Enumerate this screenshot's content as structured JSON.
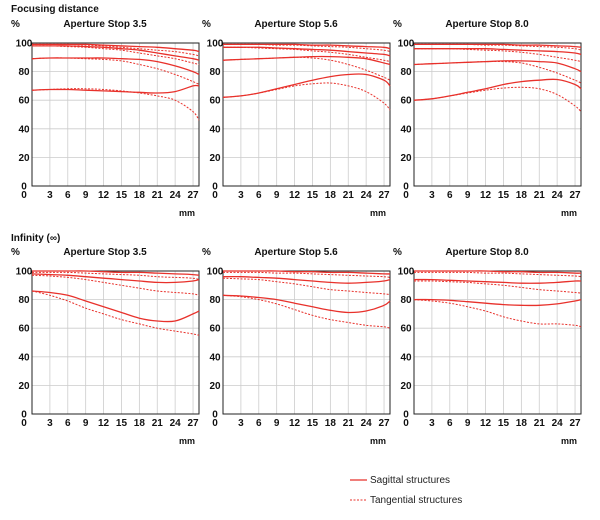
{
  "sections": [
    {
      "title": "Focusing distance"
    },
    {
      "title": "Infinity (∞)"
    }
  ],
  "legend": {
    "sagittal_label": "Sagittal structures",
    "tangential_label": "Tangential structures"
  },
  "colors": {
    "curve": "#e8312b",
    "axis": "#222222",
    "grid": "#cccccc"
  },
  "chart_data": [
    {
      "type": "line",
      "title": "Aperture Stop 3.5",
      "ylabel": "%",
      "xlabel": "mm",
      "x_ticks": [
        0,
        3,
        6,
        9,
        12,
        15,
        18,
        21,
        24,
        27
      ],
      "y_ticks": [
        0,
        20,
        40,
        60,
        80,
        100
      ],
      "xlim": [
        0,
        28
      ],
      "ylim": [
        0,
        100
      ],
      "grid": true,
      "x": [
        0,
        3,
        6,
        9,
        12,
        15,
        18,
        21,
        24,
        27,
        28
      ],
      "series": [
        {
          "style": "solid",
          "values": [
            99,
            99,
            99,
            99,
            98.5,
            98,
            97.5,
            97,
            96,
            95,
            94
          ]
        },
        {
          "style": "dashed",
          "values": [
            99,
            99,
            99,
            98.5,
            98,
            97,
            96,
            95,
            94,
            92,
            91
          ]
        },
        {
          "style": "solid",
          "values": [
            98,
            98,
            98,
            97.5,
            97,
            96,
            95,
            93,
            91,
            89,
            88
          ]
        },
        {
          "style": "dashed",
          "values": [
            98,
            98,
            97.5,
            97,
            96,
            95,
            93,
            91,
            89,
            86,
            85
          ]
        },
        {
          "style": "solid",
          "values": [
            89,
            89.5,
            89.5,
            89.5,
            89.5,
            89,
            88.5,
            87,
            84,
            80,
            78
          ]
        },
        {
          "style": "dashed",
          "values": [
            89,
            89.5,
            89.5,
            89,
            88.5,
            87.5,
            85,
            82,
            78,
            73,
            71
          ]
        },
        {
          "style": "solid",
          "values": [
            67,
            67.5,
            67.5,
            67,
            66.5,
            66,
            65.5,
            65,
            66,
            70,
            70
          ]
        },
        {
          "style": "dashed",
          "values": [
            67,
            67.5,
            68,
            68,
            67.5,
            66.5,
            65,
            63,
            60,
            52,
            46
          ]
        }
      ]
    },
    {
      "type": "line",
      "title": "Aperture Stop 5.6",
      "ylabel": "%",
      "xlabel": "mm",
      "x_ticks": [
        0,
        3,
        6,
        9,
        12,
        15,
        18,
        21,
        24,
        27
      ],
      "y_ticks": [
        0,
        20,
        40,
        60,
        80,
        100
      ],
      "xlim": [
        0,
        28
      ],
      "ylim": [
        0,
        100
      ],
      "grid": true,
      "x": [
        0,
        3,
        6,
        9,
        12,
        15,
        18,
        21,
        24,
        27,
        28
      ],
      "series": [
        {
          "style": "solid",
          "values": [
            99,
            99,
            99,
            99,
            99,
            98.5,
            98.5,
            98,
            97.5,
            97,
            96
          ]
        },
        {
          "style": "dashed",
          "values": [
            99,
            99,
            99,
            98.5,
            98.5,
            98,
            97.5,
            97,
            96,
            95,
            94
          ]
        },
        {
          "style": "solid",
          "values": [
            97,
            97,
            97,
            96.5,
            96,
            95.5,
            95,
            94,
            93,
            92,
            91
          ]
        },
        {
          "style": "dashed",
          "values": [
            97,
            97,
            96.5,
            96,
            95.5,
            94.5,
            93.5,
            92,
            90,
            88,
            87
          ]
        },
        {
          "style": "solid",
          "values": [
            88,
            88.5,
            89,
            89.5,
            90,
            90.5,
            90.5,
            90,
            89,
            86,
            85
          ]
        },
        {
          "style": "dashed",
          "values": [
            88,
            88.5,
            89,
            89.5,
            90,
            89.5,
            88,
            85,
            81,
            76,
            74
          ]
        },
        {
          "style": "solid",
          "values": [
            62,
            63,
            65,
            68,
            71,
            74,
            76.5,
            78,
            78,
            74,
            70
          ]
        },
        {
          "style": "dashed",
          "values": [
            62,
            63,
            65,
            67.5,
            70,
            71.5,
            72,
            70,
            66,
            58,
            53
          ]
        }
      ]
    },
    {
      "type": "line",
      "title": "Aperture Stop 8.0",
      "ylabel": "%",
      "xlabel": "mm",
      "x_ticks": [
        0,
        3,
        6,
        9,
        12,
        15,
        18,
        21,
        24,
        27
      ],
      "y_ticks": [
        0,
        20,
        40,
        60,
        80,
        100
      ],
      "xlim": [
        0,
        28
      ],
      "ylim": [
        0,
        100
      ],
      "grid": true,
      "x": [
        0,
        3,
        6,
        9,
        12,
        15,
        18,
        21,
        24,
        27,
        28
      ],
      "series": [
        {
          "style": "solid",
          "values": [
            99,
            99,
            99,
            99,
            99,
            99,
            98.5,
            98.5,
            98,
            97.5,
            97
          ]
        },
        {
          "style": "dashed",
          "values": [
            99,
            99,
            99,
            99,
            98.5,
            98.5,
            98,
            97.5,
            97,
            96,
            95
          ]
        },
        {
          "style": "solid",
          "values": [
            96,
            96,
            96,
            96,
            96,
            95.5,
            95,
            94.5,
            94,
            93,
            92
          ]
        },
        {
          "style": "dashed",
          "values": [
            96,
            96,
            96,
            95.5,
            95,
            94.5,
            93.5,
            92,
            90,
            88,
            87
          ]
        },
        {
          "style": "solid",
          "values": [
            85,
            85.5,
            86,
            86.5,
            87,
            87.5,
            87.5,
            87,
            86,
            82,
            80
          ]
        },
        {
          "style": "dashed",
          "values": [
            85,
            85.5,
            86,
            86.5,
            87,
            87,
            86,
            83,
            79,
            74,
            72
          ]
        },
        {
          "style": "solid",
          "values": [
            60,
            61,
            63,
            65.5,
            68,
            71,
            73,
            74,
            74.5,
            71,
            68
          ]
        },
        {
          "style": "dashed",
          "values": [
            60,
            61,
            63,
            65,
            67,
            68.5,
            69,
            68,
            64,
            56,
            52
          ]
        }
      ]
    },
    {
      "type": "line",
      "title": "Aperture Stop 3.5",
      "ylabel": "%",
      "xlabel": "mm",
      "x_ticks": [
        0,
        3,
        6,
        9,
        12,
        15,
        18,
        21,
        24,
        27
      ],
      "y_ticks": [
        0,
        20,
        40,
        60,
        80,
        100
      ],
      "xlim": [
        0,
        28
      ],
      "ylim": [
        0,
        100
      ],
      "grid": true,
      "x": [
        0,
        3,
        6,
        9,
        12,
        15,
        18,
        21,
        24,
        27,
        28
      ],
      "series": [
        {
          "style": "solid",
          "values": [
            100,
            100,
            100,
            100,
            99.5,
            99,
            99,
            98.5,
            98,
            97.5,
            97
          ]
        },
        {
          "style": "dashed",
          "values": [
            99,
            99,
            99,
            98.5,
            98,
            97.5,
            97,
            96,
            95.5,
            95,
            94
          ]
        },
        {
          "style": "solid",
          "values": [
            98,
            97.5,
            97,
            96,
            95,
            94,
            93,
            92,
            92,
            93,
            94
          ]
        },
        {
          "style": "dashed",
          "values": [
            97,
            96.5,
            95.5,
            94,
            92,
            90,
            88,
            86,
            85,
            84,
            83
          ]
        },
        {
          "style": "solid",
          "values": [
            86,
            85,
            83,
            79,
            75,
            71,
            67,
            65,
            65,
            70,
            72
          ]
        },
        {
          "style": "dashed",
          "values": [
            86,
            83,
            79,
            74,
            70,
            66,
            63,
            60,
            58,
            56,
            55
          ]
        }
      ]
    },
    {
      "type": "line",
      "title": "Aperture Stop 5.6",
      "ylabel": "%",
      "xlabel": "mm",
      "x_ticks": [
        0,
        3,
        6,
        9,
        12,
        15,
        18,
        21,
        24,
        27
      ],
      "y_ticks": [
        0,
        20,
        40,
        60,
        80,
        100
      ],
      "xlim": [
        0,
        28
      ],
      "ylim": [
        0,
        100
      ],
      "grid": true,
      "x": [
        0,
        3,
        6,
        9,
        12,
        15,
        18,
        21,
        24,
        27,
        28
      ],
      "series": [
        {
          "style": "solid",
          "values": [
            100,
            100,
            100,
            100,
            99.5,
            99.5,
            99,
            99,
            98.5,
            98,
            98
          ]
        },
        {
          "style": "dashed",
          "values": [
            99,
            99,
            99,
            98.5,
            98.5,
            98,
            97.5,
            97,
            96.5,
            96,
            95.5
          ]
        },
        {
          "style": "solid",
          "values": [
            96,
            96,
            95.5,
            95,
            94,
            93,
            92,
            91.5,
            92,
            93,
            94
          ]
        },
        {
          "style": "dashed",
          "values": [
            95,
            94.5,
            94,
            92.5,
            91,
            89,
            87,
            86,
            85,
            84,
            83.5
          ]
        },
        {
          "style": "solid",
          "values": [
            83,
            82.5,
            81.5,
            80,
            77.5,
            75,
            72.5,
            71,
            72,
            76,
            79
          ]
        },
        {
          "style": "dashed",
          "values": [
            83,
            82,
            80,
            77,
            73,
            69,
            66,
            64,
            62,
            61,
            60
          ]
        }
      ]
    },
    {
      "type": "line",
      "title": "Aperture Stop 8.0",
      "ylabel": "%",
      "xlabel": "mm",
      "x_ticks": [
        0,
        3,
        6,
        9,
        12,
        15,
        18,
        21,
        24,
        27
      ],
      "y_ticks": [
        0,
        20,
        40,
        60,
        80,
        100
      ],
      "xlim": [
        0,
        28
      ],
      "ylim": [
        0,
        100
      ],
      "grid": true,
      "x": [
        0,
        3,
        6,
        9,
        12,
        15,
        18,
        21,
        24,
        27,
        28
      ],
      "series": [
        {
          "style": "solid",
          "values": [
            100,
            100,
            100,
            100,
            100,
            99.5,
            99.5,
            99,
            99,
            98.5,
            98.5
          ]
        },
        {
          "style": "dashed",
          "values": [
            99,
            99,
            99,
            99,
            98.5,
            98.5,
            98,
            97.5,
            97,
            96.5,
            96
          ]
        },
        {
          "style": "solid",
          "values": [
            94,
            94,
            93.5,
            93,
            92.5,
            92,
            91.5,
            91.5,
            92,
            93,
            93
          ]
        },
        {
          "style": "dashed",
          "values": [
            93,
            93,
            92.5,
            92,
            91,
            90,
            88.5,
            87,
            86,
            85,
            84.5
          ]
        },
        {
          "style": "solid",
          "values": [
            80,
            80,
            79.5,
            78.5,
            77.5,
            76.5,
            76,
            76,
            77,
            79,
            80
          ]
        },
        {
          "style": "dashed",
          "values": [
            80,
            79,
            77.5,
            75,
            72,
            68,
            65,
            63,
            63,
            62,
            61
          ]
        }
      ]
    }
  ]
}
